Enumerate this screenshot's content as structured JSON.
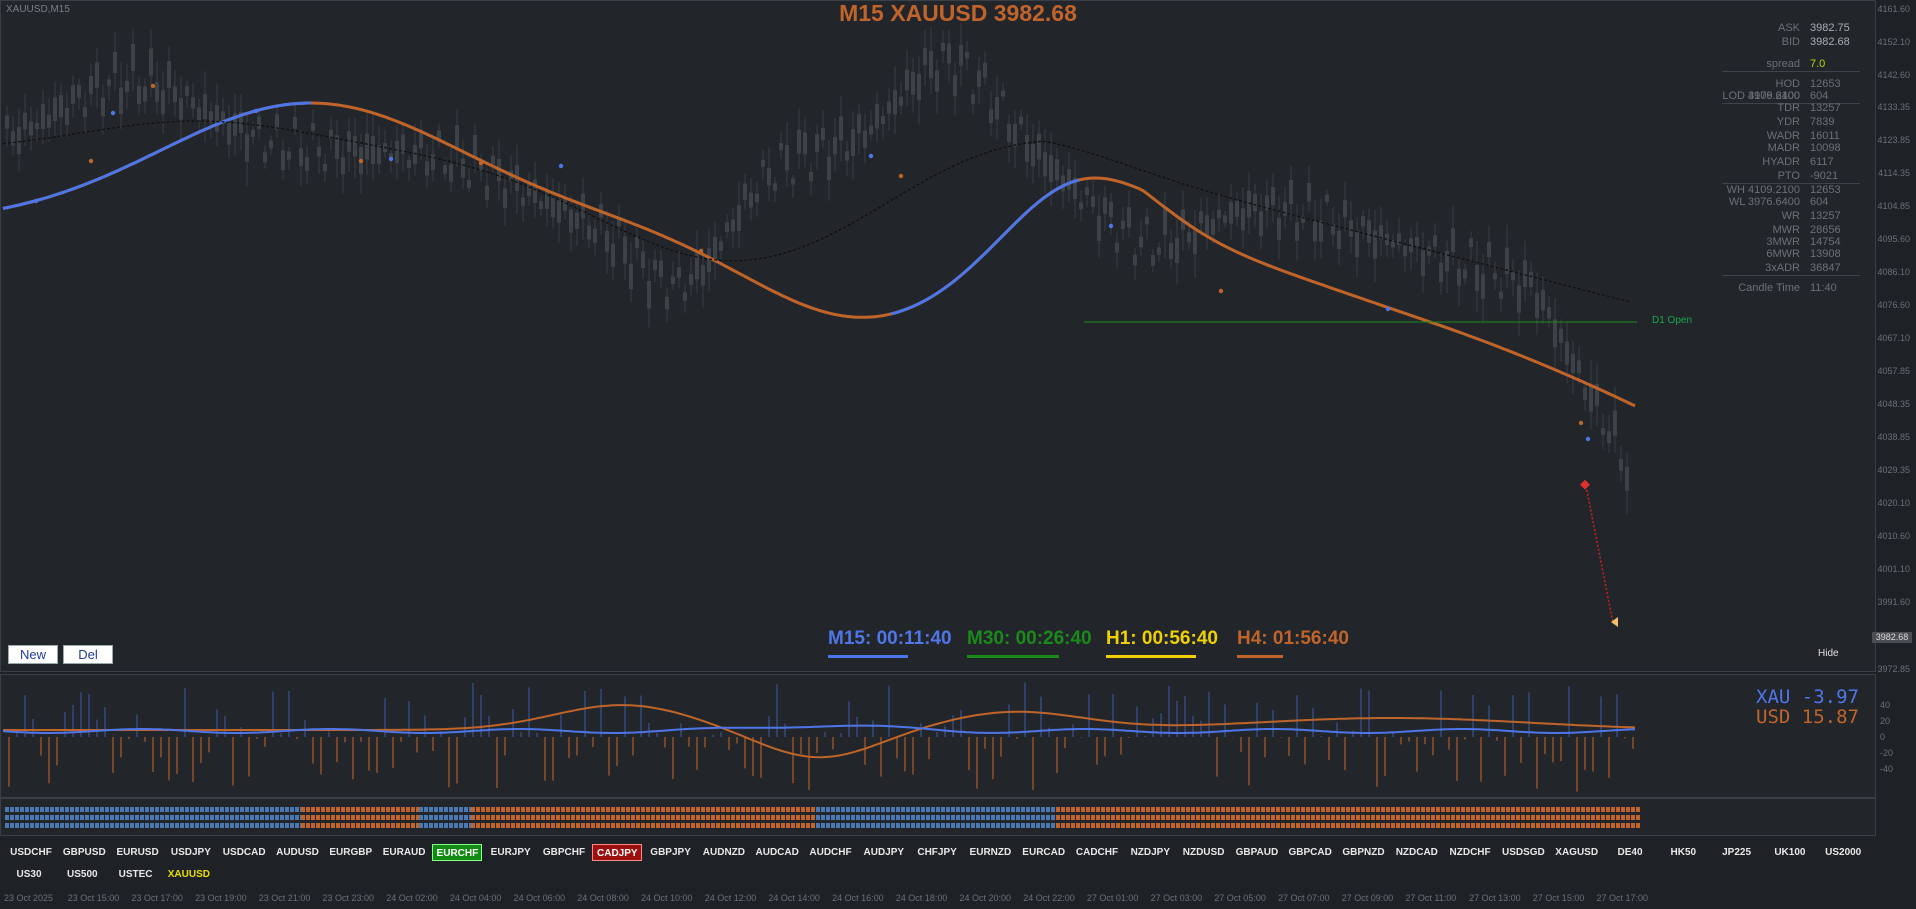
{
  "chart": {
    "symbol_label": "XAUUSD,M15",
    "title": "M15 XAUUSD 3982.68",
    "current_price_tag": "3982.68",
    "price_ticks": [
      "4161.60",
      "4152.10",
      "4142.60",
      "4133.35",
      "4123.85",
      "4114.35",
      "4104.85",
      "4095.60",
      "4086.10",
      "4076.60",
      "4067.10",
      "4057.85",
      "4048.35",
      "4038.85",
      "4029.35",
      "4020.10",
      "4010.60",
      "4001.10",
      "3991.60",
      "3972.85"
    ],
    "d1_open_label": "D1 Open",
    "hide_label": "Hide"
  },
  "info_panel": {
    "rows": [
      {
        "label": "ASK",
        "value": "3982.75"
      },
      {
        "label": "BID",
        "value": "3982.68"
      },
      {
        "label": "spread",
        "value": "7.0"
      },
      {
        "label": "HOD 4109.2100",
        "value": "12653"
      },
      {
        "label": "LOD 3976.6400",
        "value": "604"
      },
      {
        "label": "TDR",
        "value": "13257"
      },
      {
        "label": "YDR",
        "value": "7839"
      },
      {
        "label": "WADR",
        "value": "16011"
      },
      {
        "label": "MADR",
        "value": "10098"
      },
      {
        "label": "HYADR",
        "value": "6117"
      },
      {
        "label": "PTO",
        "value": "-9021"
      },
      {
        "label": "WH 4109.2100",
        "value": "12653"
      },
      {
        "label": "WL 3976.6400",
        "value": "604"
      },
      {
        "label": "WR",
        "value": "13257"
      },
      {
        "label": "MWR",
        "value": "28656"
      },
      {
        "label": "3MWR",
        "value": "14754"
      },
      {
        "label": "6MWR",
        "value": "13908"
      },
      {
        "label": "3xADR",
        "value": "36847"
      },
      {
        "label": "Candle Time",
        "value": "11:40"
      }
    ],
    "colors": {
      "spread": "#a8e000"
    }
  },
  "timers": [
    {
      "text": "M15: 00:11:40",
      "color": "#4f76e8"
    },
    {
      "text": "M30: 00:26:40",
      "color": "#1a8a1a"
    },
    {
      "text": "H1: 00:56:40",
      "color": "#f0d000"
    },
    {
      "text": "H4: 01:56:40",
      "color": "#c0642a"
    }
  ],
  "buttons": {
    "new": "New",
    "del": "Del"
  },
  "indicator": {
    "xau_label": "XAU -3.97",
    "usd_label": "USD 15.87",
    "scale_ticks": [
      "40",
      "20",
      "0",
      "-20",
      "-40"
    ]
  },
  "pairs_row1": [
    "USDCHF",
    "GBPUSD",
    "EURUSD",
    "USDJPY",
    "USDCAD",
    "AUDUSD",
    "EURGBP",
    "EURAUD",
    "EURCHF",
    "EURJPY",
    "GBPCHF",
    "CADJPY",
    "GBPJPY",
    "AUDNZD",
    "AUDCAD",
    "AUDCHF",
    "AUDJPY",
    "CHFJPY",
    "EURNZD",
    "EURCAD",
    "CADCHF",
    "NZDJPY",
    "NZDUSD",
    "GBPAUD",
    "GBPCAD",
    "GBPNZD",
    "NZDCAD",
    "NZDCHF",
    "USDSGD",
    "XAGUSD",
    "DE40",
    "HK50",
    "JP225",
    "UK100",
    "US2000"
  ],
  "pairs_row2": [
    "US30",
    "US500",
    "USTEC",
    "XAUUSD"
  ],
  "pair_states": {
    "EURCHF": "green",
    "CADJPY": "red",
    "XAUUSD": "yellow"
  },
  "time_ticks": [
    "23 Oct 2025",
    "23 Oct 15:00",
    "23 Oct 17:00",
    "23 Oct 19:00",
    "23 Oct 21:00",
    "23 Oct 23:00",
    "24 Oct 02:00",
    "24 Oct 04:00",
    "24 Oct 06:00",
    "24 Oct 08:00",
    "24 Oct 10:00",
    "24 Oct 12:00",
    "24 Oct 14:00",
    "24 Oct 16:00",
    "24 Oct 18:00",
    "24 Oct 20:00",
    "24 Oct 22:00",
    "27 Oct 01:00",
    "27 Oct 03:00",
    "27 Oct 05:00",
    "27 Oct 07:00",
    "27 Oct 09:00",
    "27 Oct 11:00",
    "27 Oct 13:00",
    "27 Oct 15:00",
    "27 Oct 17:00"
  ],
  "colors": {
    "bg": "#22262b",
    "bull_ma": "#4f76e8",
    "bear_ma": "#c0642a",
    "candles": "#3d4248"
  }
}
